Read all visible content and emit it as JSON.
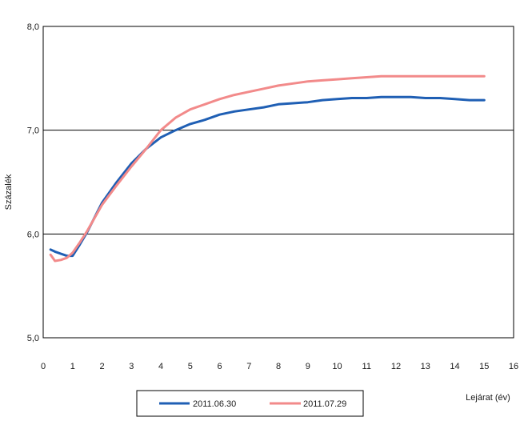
{
  "chart_data": {
    "type": "line",
    "title": "",
    "xlabel": "Lejárat (év)",
    "ylabel": "Százalék",
    "xlim": [
      0,
      16
    ],
    "ylim": [
      5.0,
      8.0
    ],
    "x_ticks": [
      0,
      1,
      2,
      3,
      4,
      5,
      6,
      7,
      8,
      9,
      10,
      11,
      12,
      13,
      14,
      15,
      16
    ],
    "x_tick_labels": [
      "0",
      "1",
      "2",
      "3",
      "4",
      "5",
      "6",
      "7",
      "8",
      "9",
      "10",
      "11",
      "12",
      "13",
      "14",
      "15",
      "16"
    ],
    "y_ticks": [
      5.0,
      6.0,
      7.0,
      8.0
    ],
    "y_tick_labels": [
      "5,0",
      "6,0",
      "7,0",
      "8,0"
    ],
    "grid": "horizontal",
    "legend_position": "bottom",
    "series": [
      {
        "name": "2011.06.30",
        "color": "#1f5fb4",
        "x": [
          0.25,
          0.4,
          0.6,
          0.8,
          1.0,
          1.25,
          1.5,
          2.0,
          2.5,
          3.0,
          3.5,
          4.0,
          4.5,
          5.0,
          5.5,
          6.0,
          6.5,
          7.0,
          7.5,
          8.0,
          8.5,
          9.0,
          9.5,
          10.0,
          10.5,
          11.0,
          11.5,
          12.0,
          12.5,
          13.0,
          13.5,
          14.0,
          14.5,
          15.0
        ],
        "values": [
          5.85,
          5.83,
          5.81,
          5.79,
          5.79,
          5.9,
          6.02,
          6.3,
          6.5,
          6.68,
          6.82,
          6.93,
          7.0,
          7.06,
          7.1,
          7.15,
          7.18,
          7.2,
          7.22,
          7.25,
          7.26,
          7.27,
          7.29,
          7.3,
          7.31,
          7.31,
          7.32,
          7.32,
          7.32,
          7.31,
          7.31,
          7.3,
          7.29,
          7.29
        ]
      },
      {
        "name": "2011.07.29",
        "color": "#f28a8a",
        "x": [
          0.25,
          0.4,
          0.6,
          0.8,
          1.0,
          1.25,
          1.5,
          2.0,
          2.5,
          3.0,
          3.5,
          4.0,
          4.5,
          5.0,
          5.5,
          6.0,
          6.5,
          7.0,
          7.5,
          8.0,
          8.5,
          9.0,
          9.5,
          10.0,
          10.5,
          11.0,
          11.5,
          12.0,
          12.5,
          13.0,
          13.5,
          14.0,
          14.5,
          15.0
        ],
        "values": [
          5.8,
          5.74,
          5.75,
          5.77,
          5.82,
          5.92,
          6.03,
          6.28,
          6.47,
          6.65,
          6.82,
          7.0,
          7.12,
          7.2,
          7.25,
          7.3,
          7.34,
          7.37,
          7.4,
          7.43,
          7.45,
          7.47,
          7.48,
          7.49,
          7.5,
          7.51,
          7.52,
          7.52,
          7.52,
          7.52,
          7.52,
          7.52,
          7.52,
          7.52
        ]
      }
    ]
  }
}
